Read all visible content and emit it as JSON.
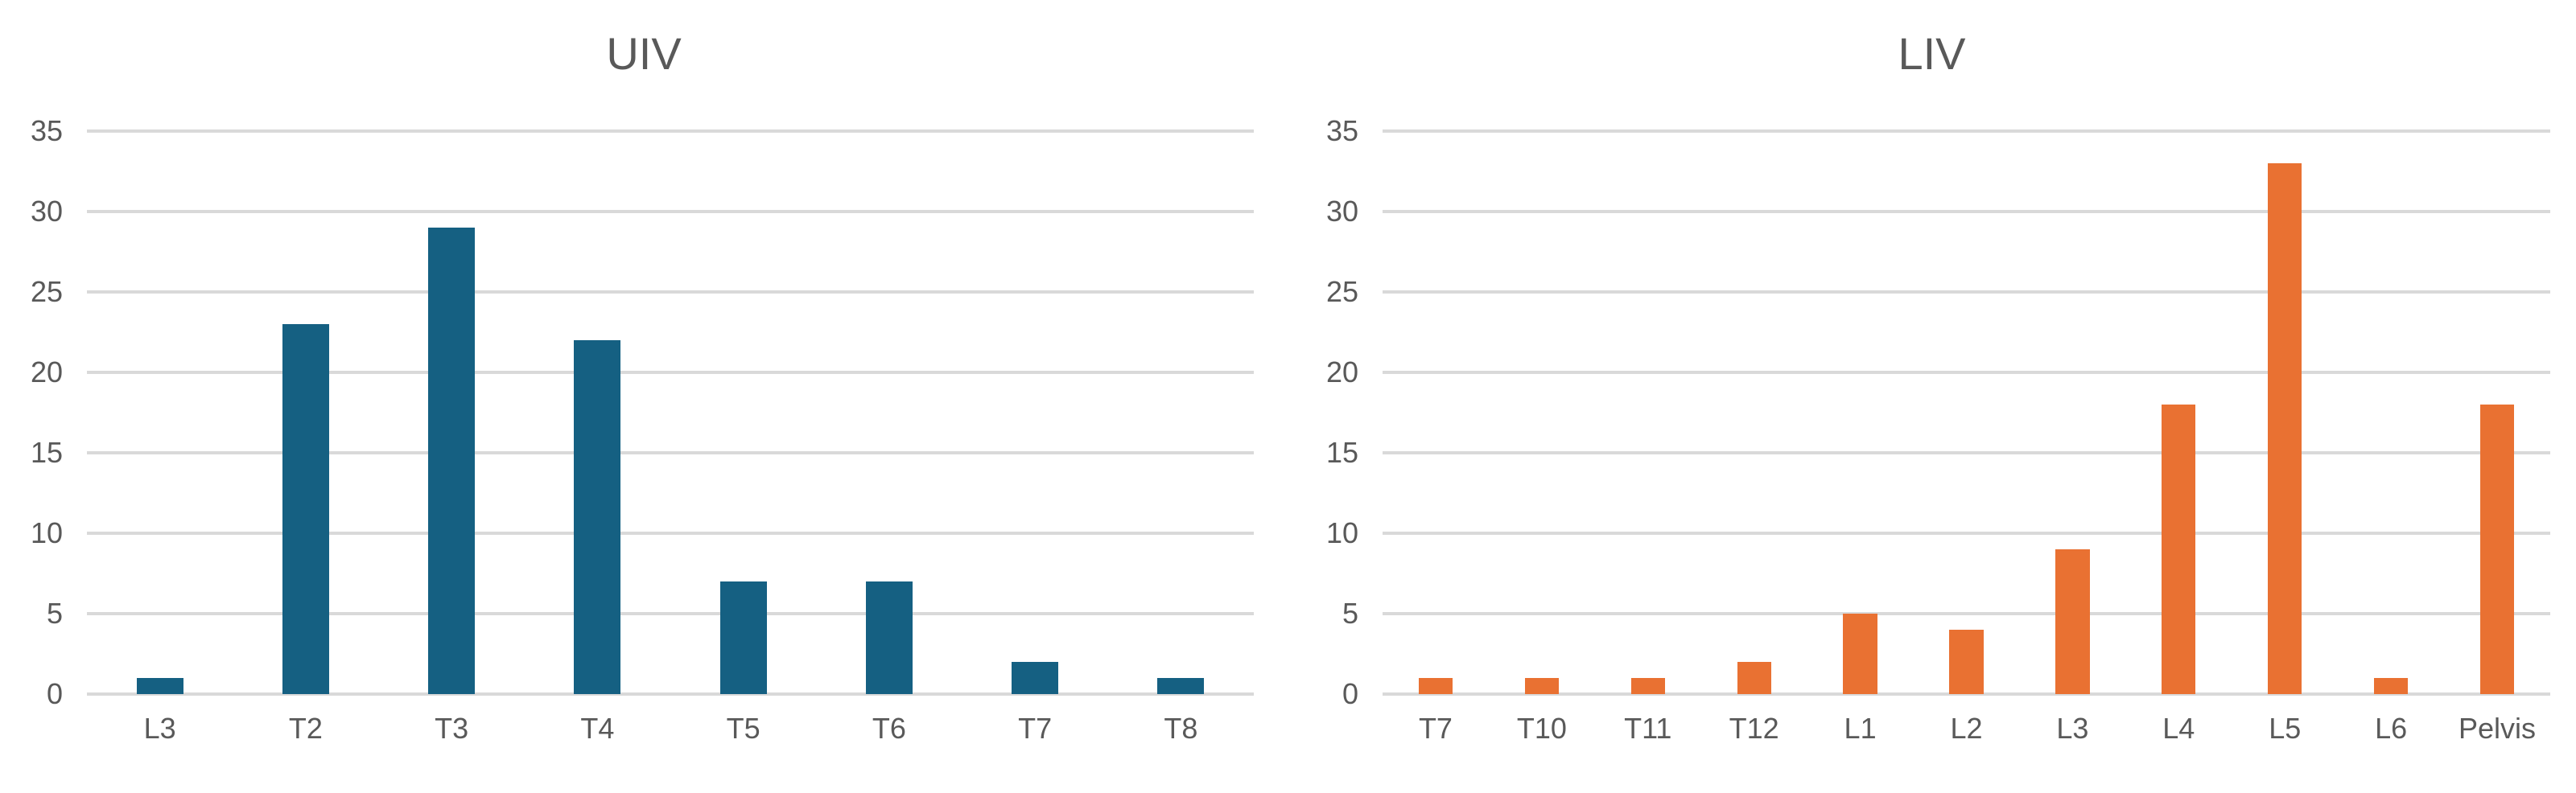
{
  "chart_data": [
    {
      "type": "bar",
      "title": "UIV",
      "xlabel": "",
      "ylabel": "",
      "categories": [
        "L3",
        "T2",
        "T3",
        "T4",
        "T5",
        "T6",
        "T7",
        "T8"
      ],
      "values": [
        1,
        23,
        29,
        22,
        7,
        7,
        2,
        1
      ],
      "ylim": [
        0,
        35
      ],
      "yticks": [
        "0",
        "5",
        "10",
        "15",
        "20",
        "25",
        "30",
        "35"
      ],
      "grid": true,
      "legend": "none",
      "color": "#156082"
    },
    {
      "type": "bar",
      "title": "LIV",
      "xlabel": "",
      "ylabel": "",
      "categories": [
        "T7",
        "T10",
        "T11",
        "T12",
        "L1",
        "L2",
        "L3",
        "L4",
        "L5",
        "L6",
        "Pelvis"
      ],
      "values": [
        1,
        1,
        1,
        2,
        5,
        4,
        9,
        18,
        33,
        1,
        18
      ],
      "ylim": [
        0,
        35
      ],
      "yticks": [
        "0",
        "5",
        "10",
        "15",
        "20",
        "25",
        "30",
        "35"
      ],
      "grid": true,
      "legend": "none",
      "color": "#E97132"
    }
  ]
}
